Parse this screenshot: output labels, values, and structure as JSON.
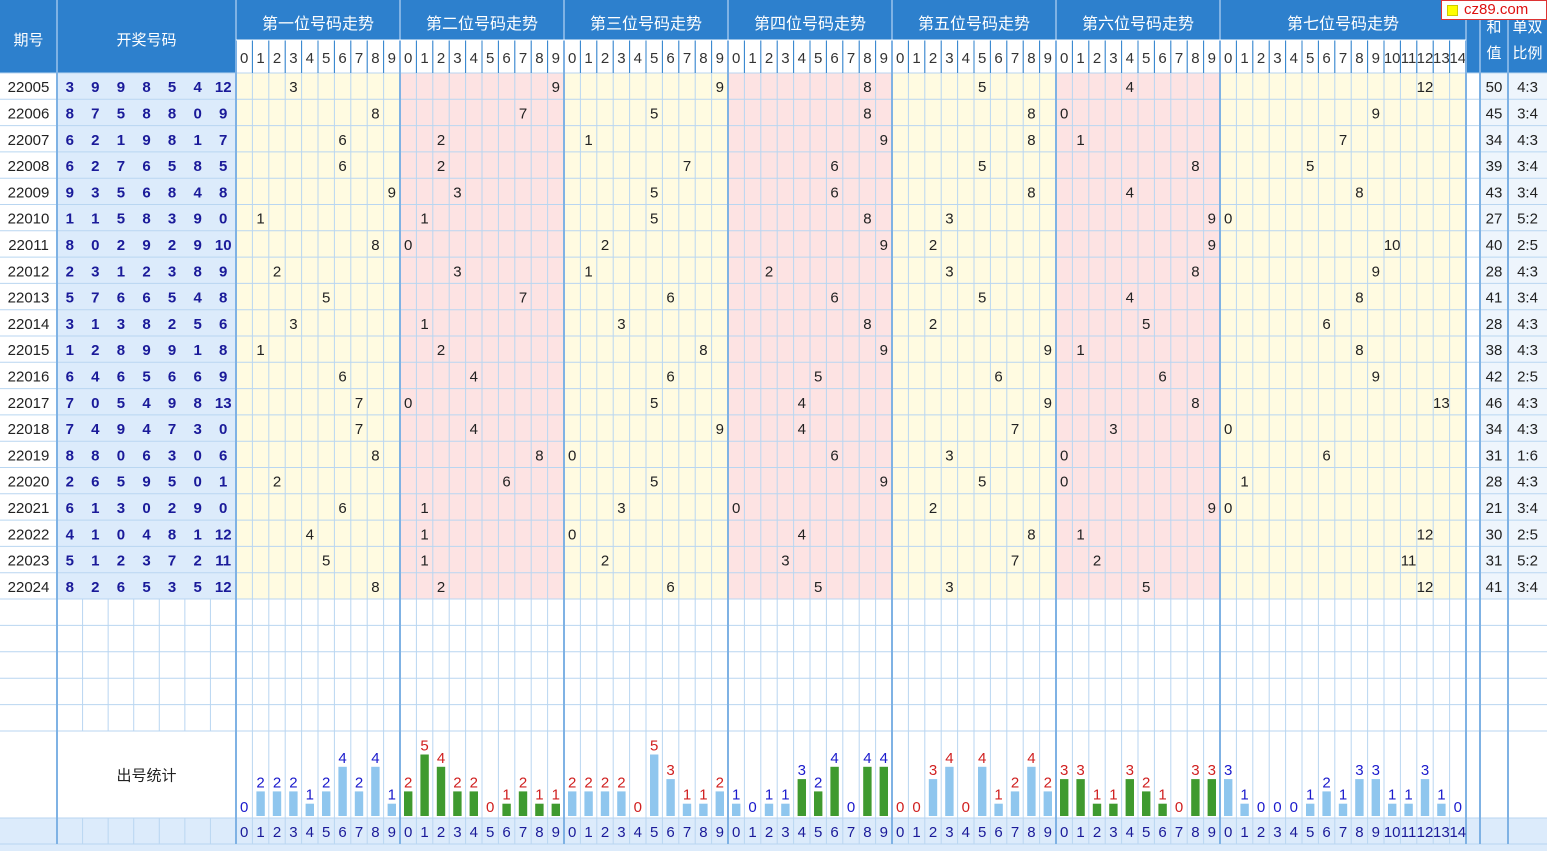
{
  "header": {
    "period_label": "期号",
    "numbers_label": "开奖号码",
    "sum_label": "和值",
    "ratio_label": "单双比例",
    "stats_label": "出号统计"
  },
  "logo": {
    "text": "cz89.com"
  },
  "colors": {
    "header_bg": "#2d80cd",
    "number_cell_bg": "#dcebfb",
    "zone_yellow": "#fffbe1",
    "zone_pink": "#fde3e3",
    "grid_line": "#b9d6f1",
    "bar_blue": "#8fc6ee",
    "bar_green": "#3f9a2f",
    "count_blue": "#1a1acc",
    "count_red": "#d02020"
  },
  "chart_data": {
    "type": "table",
    "positions": [
      {
        "title": "第一位号码走势",
        "digits": [
          "0",
          "1",
          "2",
          "3",
          "4",
          "5",
          "6",
          "7",
          "8",
          "9"
        ]
      },
      {
        "title": "第二位号码走势",
        "digits": [
          "0",
          "1",
          "2",
          "3",
          "4",
          "5",
          "6",
          "7",
          "8",
          "9"
        ]
      },
      {
        "title": "第三位号码走势",
        "digits": [
          "0",
          "1",
          "2",
          "3",
          "4",
          "5",
          "6",
          "7",
          "8",
          "9"
        ]
      },
      {
        "title": "第四位号码走势",
        "digits": [
          "0",
          "1",
          "2",
          "3",
          "4",
          "5",
          "6",
          "7",
          "8",
          "9"
        ]
      },
      {
        "title": "第五位号码走势",
        "digits": [
          "0",
          "1",
          "2",
          "3",
          "4",
          "5",
          "6",
          "7",
          "8",
          "9"
        ]
      },
      {
        "title": "第六位号码走势",
        "digits": [
          "0",
          "1",
          "2",
          "3",
          "4",
          "5",
          "6",
          "7",
          "8",
          "9"
        ]
      },
      {
        "title": "第七位号码走势",
        "digits": [
          "0",
          "1",
          "2",
          "3",
          "4",
          "5",
          "6",
          "7",
          "8",
          "9",
          "10",
          "11",
          "12",
          "13",
          "14"
        ]
      }
    ],
    "draws": [
      {
        "period": "22005",
        "numbers": [
          3,
          9,
          9,
          8,
          5,
          4,
          12
        ],
        "sum": "50",
        "ratio": "4:3"
      },
      {
        "period": "22006",
        "numbers": [
          8,
          7,
          5,
          8,
          8,
          0,
          9
        ],
        "sum": "45",
        "ratio": "3:4"
      },
      {
        "period": "22007",
        "numbers": [
          6,
          2,
          1,
          9,
          8,
          1,
          7
        ],
        "sum": "34",
        "ratio": "4:3"
      },
      {
        "period": "22008",
        "numbers": [
          6,
          2,
          7,
          6,
          5,
          8,
          5
        ],
        "sum": "39",
        "ratio": "3:4"
      },
      {
        "period": "22009",
        "numbers": [
          9,
          3,
          5,
          6,
          8,
          4,
          8
        ],
        "sum": "43",
        "ratio": "3:4"
      },
      {
        "period": "22010",
        "numbers": [
          1,
          1,
          5,
          8,
          3,
          9,
          0
        ],
        "sum": "27",
        "ratio": "5:2"
      },
      {
        "period": "22011",
        "numbers": [
          8,
          0,
          2,
          9,
          2,
          9,
          10
        ],
        "sum": "40",
        "ratio": "2:5"
      },
      {
        "period": "22012",
        "numbers": [
          2,
          3,
          1,
          2,
          3,
          8,
          9
        ],
        "sum": "28",
        "ratio": "4:3"
      },
      {
        "period": "22013",
        "numbers": [
          5,
          7,
          6,
          6,
          5,
          4,
          8
        ],
        "sum": "41",
        "ratio": "3:4"
      },
      {
        "period": "22014",
        "numbers": [
          3,
          1,
          3,
          8,
          2,
          5,
          6
        ],
        "sum": "28",
        "ratio": "4:3"
      },
      {
        "period": "22015",
        "numbers": [
          1,
          2,
          8,
          9,
          9,
          1,
          8
        ],
        "sum": "38",
        "ratio": "4:3"
      },
      {
        "period": "22016",
        "numbers": [
          6,
          4,
          6,
          5,
          6,
          6,
          9
        ],
        "sum": "42",
        "ratio": "2:5"
      },
      {
        "period": "22017",
        "numbers": [
          7,
          0,
          5,
          4,
          9,
          8,
          13
        ],
        "sum": "46",
        "ratio": "4:3"
      },
      {
        "period": "22018",
        "numbers": [
          7,
          4,
          9,
          4,
          7,
          3,
          0
        ],
        "sum": "34",
        "ratio": "4:3"
      },
      {
        "period": "22019",
        "numbers": [
          8,
          8,
          0,
          6,
          3,
          0,
          6
        ],
        "sum": "31",
        "ratio": "1:6"
      },
      {
        "period": "22020",
        "numbers": [
          2,
          6,
          5,
          9,
          5,
          0,
          1
        ],
        "sum": "28",
        "ratio": "4:3"
      },
      {
        "period": "22021",
        "numbers": [
          6,
          1,
          3,
          0,
          2,
          9,
          0
        ],
        "sum": "21",
        "ratio": "3:4"
      },
      {
        "period": "22022",
        "numbers": [
          4,
          1,
          0,
          4,
          8,
          1,
          12
        ],
        "sum": "30",
        "ratio": "2:5"
      },
      {
        "period": "22023",
        "numbers": [
          5,
          1,
          2,
          3,
          7,
          2,
          11
        ],
        "sum": "31",
        "ratio": "5:2"
      },
      {
        "period": "22024",
        "numbers": [
          8,
          2,
          6,
          5,
          3,
          5,
          12
        ],
        "sum": "41",
        "ratio": "3:4"
      }
    ],
    "frequency_counts": [
      [
        0,
        2,
        2,
        2,
        1,
        2,
        4,
        2,
        4,
        1
      ],
      [
        2,
        5,
        4,
        2,
        2,
        0,
        1,
        2,
        1,
        1
      ],
      [
        2,
        2,
        2,
        2,
        0,
        5,
        3,
        1,
        1,
        2
      ],
      [
        1,
        0,
        1,
        1,
        3,
        2,
        4,
        0,
        4,
        4
      ],
      [
        0,
        0,
        3,
        4,
        0,
        4,
        1,
        2,
        4,
        2
      ],
      [
        3,
        3,
        1,
        1,
        3,
        2,
        1,
        0,
        3,
        3
      ],
      [
        3,
        1,
        0,
        0,
        0,
        1,
        2,
        1,
        3,
        3,
        1,
        1,
        3,
        1,
        0
      ]
    ],
    "empty_rows": 5
  }
}
